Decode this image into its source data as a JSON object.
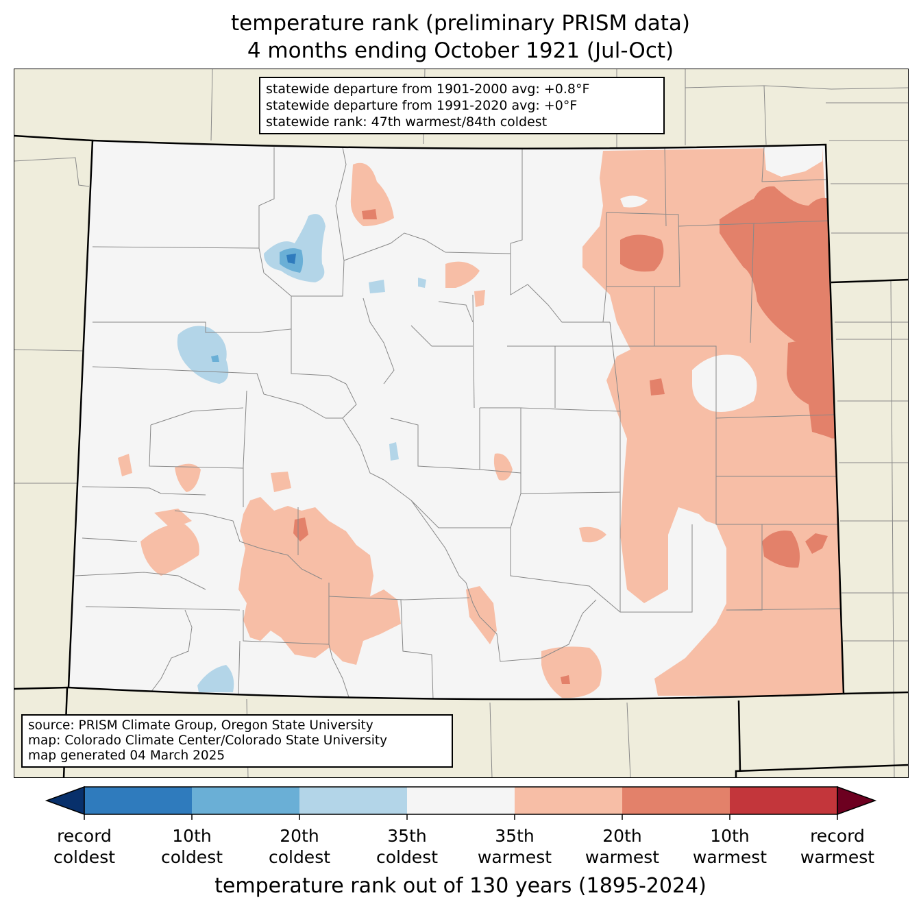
{
  "title_line1": "temperature rank (preliminary PRISM data)",
  "title_line2": "4 months ending October 1921 (Jul-Oct)",
  "stats": {
    "line1": "statewide departure from 1901-2000 avg: +0.8°F",
    "line2": "statewide departure from 1991-2020 avg: +0°F",
    "line3": "statewide rank: 47th warmest/84th coldest"
  },
  "source": {
    "line1": "source: PRISM Climate Group, Oregon State University",
    "line2": "map: Colorado Climate Center/Colorado State University",
    "line3": "map generated 04 March 2025"
  },
  "colorbar": {
    "title": "temperature rank out of 130 years (1895-2024)",
    "ticks": [
      {
        "line1": "record",
        "line2": "coldest"
      },
      {
        "line1": "10th",
        "line2": "coldest"
      },
      {
        "line1": "20th",
        "line2": "coldest"
      },
      {
        "line1": "35th",
        "line2": "coldest"
      },
      {
        "line1": "35th",
        "line2": "warmest"
      },
      {
        "line1": "20th",
        "line2": "warmest"
      },
      {
        "line1": "10th",
        "line2": "warmest"
      },
      {
        "line1": "record",
        "line2": "warmest"
      }
    ],
    "colors": {
      "record_coldest": "#08306b",
      "coldest_10": "#2f7bbd",
      "coldest_20": "#6aafd6",
      "coldest_35": "#b3d5e8",
      "near_normal": "#f5f5f5",
      "warmest_35": "#f7bea6",
      "warmest_20": "#e3816a",
      "warmest_10": "#c3363b",
      "record_warmest": "#6d0020"
    }
  },
  "map_colors": {
    "land_outside": "#efeddc",
    "state_border": "#000000",
    "county_border": "#888888"
  }
}
